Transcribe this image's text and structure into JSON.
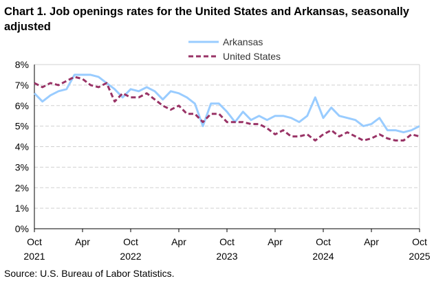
{
  "chart_data": {
    "type": "line",
    "title": "Chart 1. Job openings rates for the United States and Arkansas, seasonally adjusted",
    "source": "Source: U.S. Bureau of Labor Statistics.",
    "xlabel": "",
    "ylabel": "",
    "ylim": [
      0,
      8
    ],
    "yticks": [
      "0%",
      "1%",
      "2%",
      "3%",
      "4%",
      "5%",
      "6%",
      "7%",
      "8%"
    ],
    "xticks": [
      {
        "month": "Oct",
        "year": "2021"
      },
      {
        "month": "Apr",
        "year": ""
      },
      {
        "month": "Oct",
        "year": "2022"
      },
      {
        "month": "Apr",
        "year": ""
      },
      {
        "month": "Oct",
        "year": "2023"
      },
      {
        "month": "Apr",
        "year": ""
      },
      {
        "month": "Oct",
        "year": "2024"
      },
      {
        "month": "Apr",
        "year": ""
      },
      {
        "month": "Oct",
        "year": "2025"
      }
    ],
    "x_range": [
      "2021-10",
      "2025-10"
    ],
    "grid": true,
    "legend_position": "top-center",
    "series": [
      {
        "name": "Arkansas",
        "color": "#99CCFF",
        "style": "solid",
        "values": [
          6.6,
          6.2,
          6.5,
          6.7,
          6.8,
          7.5,
          7.5,
          7.5,
          7.4,
          7.1,
          6.8,
          6.4,
          6.8,
          6.7,
          6.9,
          6.7,
          6.3,
          6.7,
          6.6,
          6.4,
          6.1,
          5.0,
          6.1,
          6.1,
          5.7,
          5.2,
          5.7,
          5.3,
          5.5,
          5.3,
          5.5,
          5.5,
          5.4,
          5.2,
          5.5,
          6.4,
          5.4,
          5.9,
          5.5,
          5.4,
          5.3,
          5.0,
          5.1,
          5.4,
          4.8,
          4.8,
          4.7,
          4.8,
          5.0
        ]
      },
      {
        "name": "United States",
        "color": "#993366",
        "style": "dashed",
        "values": [
          7.1,
          6.9,
          7.1,
          7.0,
          7.2,
          7.4,
          7.3,
          7.0,
          6.9,
          7.1,
          6.2,
          6.6,
          6.4,
          6.4,
          6.6,
          6.3,
          6.0,
          5.8,
          6.0,
          5.6,
          5.6,
          5.2,
          5.6,
          5.6,
          5.2,
          5.2,
          5.2,
          5.1,
          5.1,
          4.9,
          4.6,
          4.8,
          4.5,
          4.5,
          4.6,
          4.3,
          4.6,
          4.8,
          4.5,
          4.7,
          4.5,
          4.3,
          4.4,
          4.6,
          4.4,
          4.3,
          4.3,
          4.6,
          4.5
        ]
      }
    ]
  }
}
